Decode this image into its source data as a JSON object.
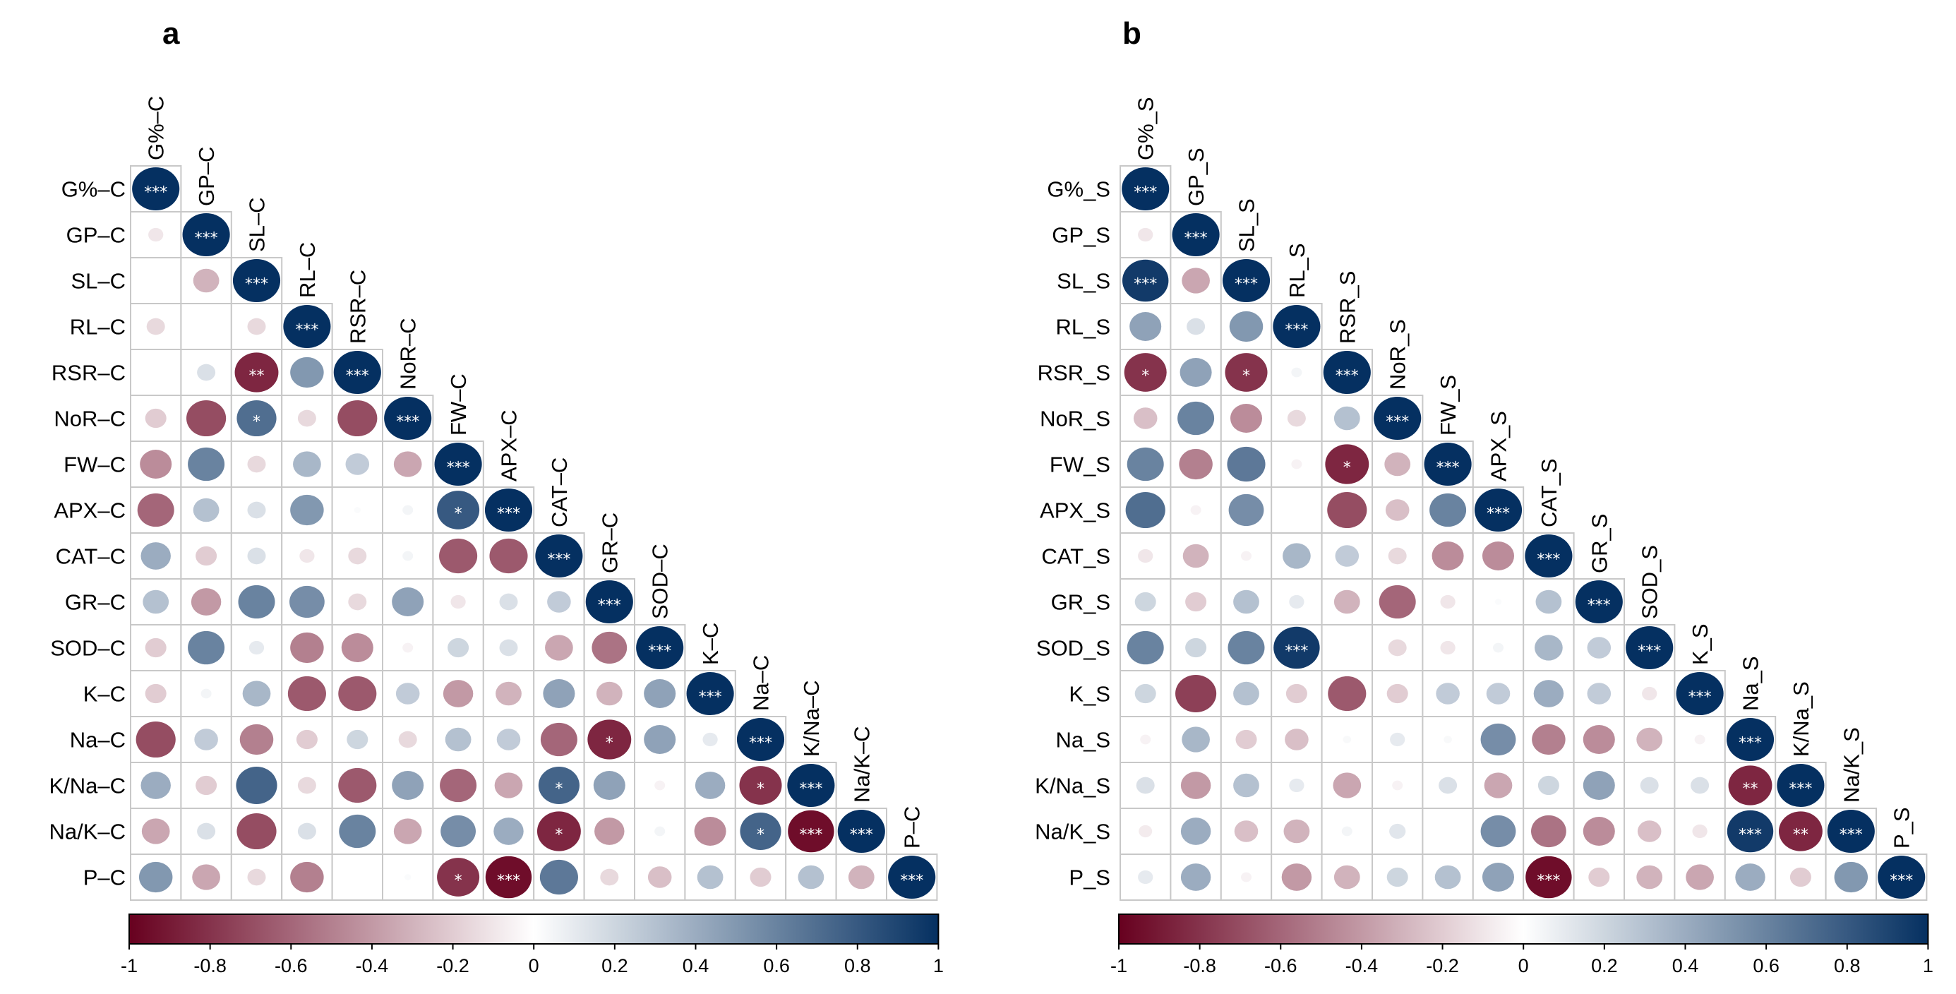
{
  "chart_data": [
    {
      "type": "heatmap",
      "panel_label": "a",
      "variables": [
        "G%–C",
        "GP–C",
        "SL–C",
        "RL–C",
        "RSR–C",
        "NoR–C",
        "FW–C",
        "APX–C",
        "CAT–C",
        "GR–C",
        "SOD–C",
        "K–C",
        "Na–C",
        "K/Na–C",
        "Na/K–C",
        "P–C"
      ],
      "matrix_lower": [
        [
          1
        ],
        [
          -0.1,
          1
        ],
        [
          0.0,
          -0.3,
          1
        ],
        [
          -0.15,
          0.0,
          -0.15,
          1
        ],
        [
          0.0,
          0.15,
          -0.85,
          0.5,
          1
        ],
        [
          -0.2,
          -0.7,
          0.7,
          -0.15,
          -0.7,
          1
        ],
        [
          -0.45,
          0.6,
          -0.15,
          0.35,
          0.25,
          -0.35,
          1
        ],
        [
          -0.6,
          0.3,
          0.15,
          0.5,
          0.02,
          0.05,
          0.8,
          1
        ],
        [
          0.4,
          -0.2,
          0.15,
          -0.1,
          -0.15,
          0.05,
          -0.65,
          -0.65,
          1
        ],
        [
          0.3,
          -0.4,
          0.6,
          0.55,
          -0.15,
          0.45,
          -0.1,
          0.15,
          0.25,
          1
        ],
        [
          -0.2,
          0.6,
          0.1,
          -0.5,
          -0.45,
          -0.05,
          0.2,
          0.15,
          -0.35,
          -0.55,
          1
        ],
        [
          -0.2,
          0.05,
          0.35,
          -0.65,
          -0.65,
          0.25,
          -0.4,
          -0.3,
          0.45,
          -0.3,
          0.45,
          1
        ],
        [
          -0.7,
          0.25,
          -0.5,
          -0.2,
          0.2,
          -0.15,
          0.3,
          0.25,
          -0.6,
          -0.85,
          0.45,
          0.1,
          1
        ],
        [
          0.4,
          -0.2,
          0.75,
          -0.15,
          -0.65,
          0.45,
          -0.6,
          -0.35,
          0.75,
          0.45,
          -0.05,
          0.4,
          -0.8,
          1
        ],
        [
          -0.35,
          0.15,
          -0.7,
          0.15,
          0.6,
          -0.35,
          0.55,
          0.4,
          -0.85,
          -0.4,
          0.05,
          -0.45,
          0.75,
          -0.95,
          1
        ],
        [
          0.5,
          -0.35,
          -0.15,
          -0.5,
          0.0,
          0.02,
          -0.8,
          -0.95,
          0.65,
          -0.15,
          -0.25,
          0.3,
          -0.2,
          0.3,
          -0.3,
          1
        ]
      ],
      "significance_lower": [
        [
          "***"
        ],
        [
          "",
          "***"
        ],
        [
          "",
          "",
          "***"
        ],
        [
          "",
          "",
          "",
          "***"
        ],
        [
          "",
          "",
          "**",
          "",
          "***"
        ],
        [
          "",
          "",
          "*",
          "",
          "",
          "***"
        ],
        [
          "",
          "",
          "",
          "",
          "",
          "",
          "***"
        ],
        [
          "",
          "",
          "",
          "",
          "",
          "",
          "*",
          "***"
        ],
        [
          "",
          "",
          "",
          "",
          "",
          "",
          "",
          "",
          "***"
        ],
        [
          "",
          "",
          "",
          "",
          "",
          "",
          "",
          "",
          "",
          "***"
        ],
        [
          "",
          "",
          "",
          "",
          "",
          "",
          "",
          "",
          "",
          "",
          "***"
        ],
        [
          "",
          "",
          "",
          "",
          "",
          "",
          "",
          "",
          "",
          "",
          "",
          "***"
        ],
        [
          "",
          "",
          "",
          "",
          "",
          "",
          "",
          "",
          "",
          "*",
          "",
          "",
          "***"
        ],
        [
          "",
          "",
          "",
          "",
          "",
          "",
          "",
          "",
          "*",
          "",
          "",
          "",
          "*",
          "***"
        ],
        [
          "",
          "",
          "",
          "",
          "",
          "",
          "",
          "",
          "*",
          "",
          "",
          "",
          "*",
          "***",
          "***"
        ],
        [
          "",
          "",
          "",
          "",
          "",
          "",
          "*",
          "***",
          "",
          "",
          "",
          "",
          "",
          "",
          "",
          "***"
        ]
      ],
      "colorbar": {
        "range": [
          -1,
          1
        ],
        "ticks": [
          "-1",
          "-0.8",
          "-0.6",
          "-0.4",
          "-0.2",
          "0",
          "0.2",
          "0.4",
          "0.6",
          "0.8",
          "1"
        ]
      }
    },
    {
      "type": "heatmap",
      "panel_label": "b",
      "variables": [
        "G%_S",
        "GP_S",
        "SL_S",
        "RL_S",
        "RSR_S",
        "NoR_S",
        "FW_S",
        "APX_S",
        "CAT_S",
        "GR_S",
        "SOD_S",
        "K_S",
        "Na_S",
        "K/Na_S",
        "Na/K_S",
        "P_S"
      ],
      "matrix_lower": [
        [
          1
        ],
        [
          -0.1,
          1
        ],
        [
          0.95,
          -0.35,
          1
        ],
        [
          0.45,
          0.15,
          0.5,
          1
        ],
        [
          -0.8,
          0.45,
          -0.8,
          0.05,
          1
        ],
        [
          -0.25,
          0.6,
          -0.45,
          -0.15,
          0.3,
          1
        ],
        [
          0.6,
          -0.5,
          0.65,
          -0.05,
          -0.85,
          -0.3,
          1
        ],
        [
          0.7,
          -0.05,
          0.55,
          0.0,
          -0.7,
          -0.25,
          0.6,
          1
        ],
        [
          -0.1,
          -0.3,
          -0.05,
          0.35,
          0.25,
          -0.15,
          -0.45,
          -0.45,
          1
        ],
        [
          0.2,
          -0.2,
          0.3,
          0.1,
          -0.3,
          -0.6,
          -0.1,
          0.02,
          0.3,
          1
        ],
        [
          0.6,
          0.2,
          0.6,
          0.95,
          0.0,
          -0.15,
          -0.1,
          0.05,
          0.35,
          0.25,
          1
        ],
        [
          0.2,
          -0.75,
          0.3,
          -0.2,
          -0.65,
          -0.2,
          0.25,
          0.25,
          0.4,
          0.25,
          -0.1,
          1
        ],
        [
          -0.05,
          0.35,
          -0.2,
          -0.25,
          0.03,
          0.1,
          0.03,
          0.55,
          -0.5,
          -0.45,
          -0.3,
          -0.05,
          1
        ],
        [
          0.15,
          -0.4,
          0.3,
          0.1,
          -0.35,
          -0.05,
          0.15,
          -0.35,
          0.2,
          0.45,
          0.15,
          0.15,
          -0.85,
          1
        ],
        [
          -0.08,
          0.4,
          -0.25,
          -0.3,
          0.05,
          0.12,
          0.0,
          0.55,
          -0.55,
          -0.45,
          -0.25,
          -0.1,
          0.95,
          -0.85,
          1
        ],
        [
          0.1,
          0.4,
          -0.05,
          -0.4,
          -0.3,
          0.2,
          0.3,
          0.45,
          -0.95,
          -0.2,
          -0.3,
          -0.35,
          0.4,
          -0.2,
          0.5,
          1
        ]
      ],
      "significance_lower": [
        [
          "***"
        ],
        [
          "",
          "***"
        ],
        [
          "***",
          "",
          "***"
        ],
        [
          "",
          "",
          "",
          "***"
        ],
        [
          "*",
          "",
          "*",
          "",
          "***"
        ],
        [
          "",
          "",
          "",
          "",
          "",
          "***"
        ],
        [
          "",
          "",
          "",
          "",
          "*",
          "",
          "***"
        ],
        [
          "",
          "",
          "",
          "",
          "",
          "",
          "",
          "***"
        ],
        [
          "",
          "",
          "",
          "",
          "",
          "",
          "",
          "",
          "***"
        ],
        [
          "",
          "",
          "",
          "",
          "",
          "",
          "",
          "",
          "",
          "***"
        ],
        [
          "",
          "",
          "",
          "***",
          "",
          "",
          "",
          "",
          "",
          "",
          "***"
        ],
        [
          "",
          "",
          "",
          "",
          "",
          "",
          "",
          "",
          "",
          "",
          "",
          "***"
        ],
        [
          "",
          "",
          "",
          "",
          "",
          "",
          "",
          "",
          "",
          "",
          "",
          "",
          "***"
        ],
        [
          "",
          "",
          "",
          "",
          "",
          "",
          "",
          "",
          "",
          "",
          "",
          "",
          "**",
          "***"
        ],
        [
          "",
          "",
          "",
          "",
          "",
          "",
          "",
          "",
          "",
          "",
          "",
          "",
          "***",
          "**",
          "***"
        ],
        [
          "",
          "",
          "",
          "",
          "",
          "",
          "",
          "",
          "***",
          "",
          "",
          "",
          "",
          "",
          "",
          "***"
        ]
      ],
      "colorbar": {
        "range": [
          -1,
          1
        ],
        "ticks": [
          "-1",
          "-0.8",
          "-0.6",
          "-0.4",
          "-0.2",
          "0",
          "0.2",
          "0.4",
          "0.6",
          "0.8",
          "1"
        ]
      }
    }
  ],
  "colors": {
    "negative": "#67001F",
    "zero": "#FFFFFF",
    "positive": "#053061",
    "grid": "#C8C8C8"
  }
}
